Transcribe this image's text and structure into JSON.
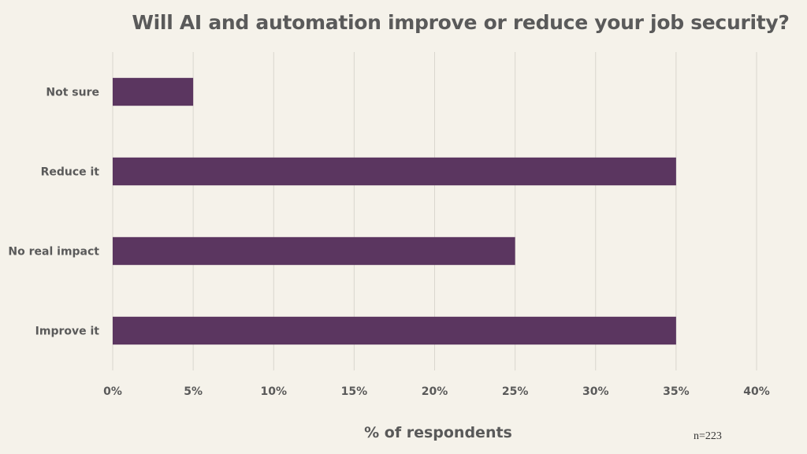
{
  "chart_data": {
    "type": "bar",
    "orientation": "horizontal",
    "title": "Will AI and automation improve or reduce your job security?",
    "xlabel": "% of respondents",
    "ylabel": "",
    "categories": [
      "Not sure",
      "Reduce it",
      "No real impact",
      "Improve it"
    ],
    "values": [
      5,
      35,
      25,
      35
    ],
    "xlim": [
      0,
      40
    ],
    "x_ticks": [
      0,
      5,
      10,
      15,
      20,
      25,
      30,
      35,
      40
    ],
    "tick_suffix": "%",
    "grid": "vertical",
    "bar_color": "#5b3660",
    "note": "n=223"
  }
}
